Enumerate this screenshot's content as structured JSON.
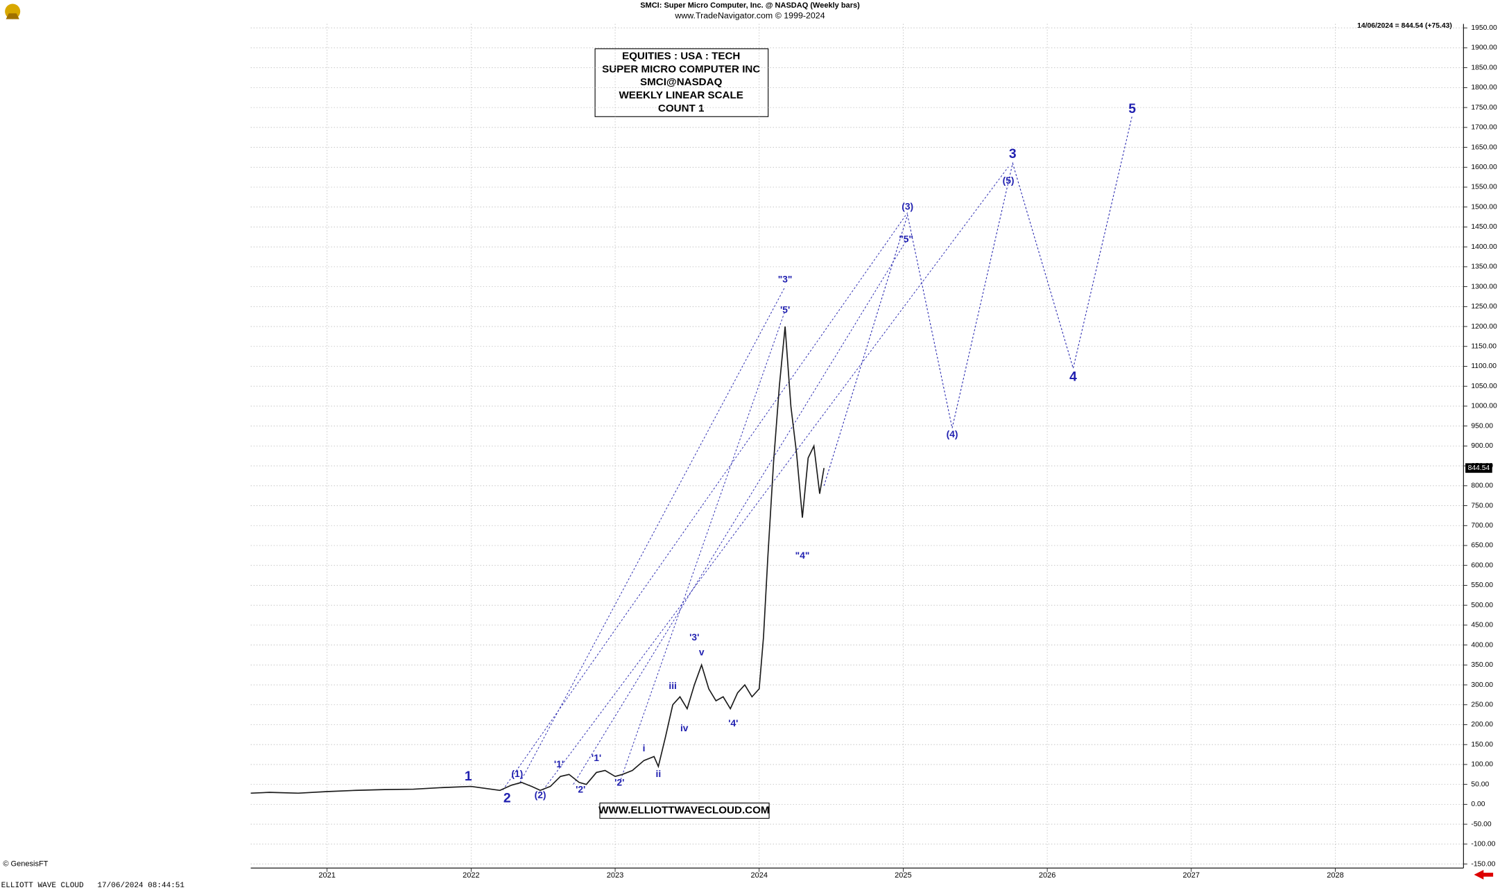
{
  "chart_data": {
    "type": "line",
    "title": "SMCI:  Super Micro Computer, Inc. @ NASDAQ  (Weekly bars)",
    "subtitle": "www.TradeNavigator.com © 1999-2024",
    "last_close_label": "14/06/2024 = 844.54 (+75.43)",
    "last_price": 844.54,
    "info_box": [
      "EQUITIES : USA : TECH",
      "SUPER MICRO COMPUTER INC",
      "SMCI@NASDAQ",
      "WEEKLY LINEAR SCALE",
      "COUNT 1"
    ],
    "website": "WWW.ELLIOTTWAVECLOUD.COM",
    "xlim": [
      2020.47,
      2028.89
    ],
    "xticks": [
      2021,
      2022,
      2023,
      2024,
      2025,
      2026,
      2027,
      2028
    ],
    "ylim": [
      -160,
      1960
    ],
    "yticks": [
      {
        "value": -150,
        "label": "-150.00"
      },
      {
        "value": -100,
        "label": "-100.00"
      },
      {
        "value": -50,
        "label": "-50.00"
      },
      {
        "value": 0,
        "label": "0.00"
      },
      {
        "value": 50,
        "label": "50.00"
      },
      {
        "value": 100,
        "label": "100.00"
      },
      {
        "value": 150,
        "label": "150.00"
      },
      {
        "value": 200,
        "label": "200.00"
      },
      {
        "value": 250,
        "label": "250.00"
      },
      {
        "value": 300,
        "label": "300.00"
      },
      {
        "value": 350,
        "label": "350.00"
      },
      {
        "value": 400,
        "label": "400.00"
      },
      {
        "value": 450,
        "label": "450.00"
      },
      {
        "value": 500,
        "label": "500.00"
      },
      {
        "value": 550,
        "label": "550.00"
      },
      {
        "value": 600,
        "label": "600.00"
      },
      {
        "value": 650,
        "label": "650.00"
      },
      {
        "value": 700,
        "label": "700.00"
      },
      {
        "value": 750,
        "label": "750.00"
      },
      {
        "value": 800,
        "label": "800.00"
      },
      {
        "value": 850,
        "label": "850.00"
      },
      {
        "value": 900,
        "label": "900.00"
      },
      {
        "value": 950,
        "label": "950.00"
      },
      {
        "value": 1000,
        "label": "1000.00"
      },
      {
        "value": 1050,
        "label": "1050.00"
      },
      {
        "value": 1100,
        "label": "1100.00"
      },
      {
        "value": 1150,
        "label": "1150.00"
      },
      {
        "value": 1200,
        "label": "1200.00"
      },
      {
        "value": 1250,
        "label": "1250.00"
      },
      {
        "value": 1300,
        "label": "1300.00"
      },
      {
        "value": 1350,
        "label": "1350.00"
      },
      {
        "value": 1400,
        "label": "1400.00"
      },
      {
        "value": 1450,
        "label": "1450.00"
      },
      {
        "value": 1500,
        "label": "1500.00"
      },
      {
        "value": 1550,
        "label": "1550.00"
      },
      {
        "value": 1600,
        "label": "1600.00"
      },
      {
        "value": 1650,
        "label": "1650.00"
      },
      {
        "value": 1700,
        "label": "1700.00"
      },
      {
        "value": 1750,
        "label": "1750.00"
      },
      {
        "value": 1800,
        "label": "1800.00"
      },
      {
        "value": 1850,
        "label": "1850.00"
      },
      {
        "value": 1900,
        "label": "1900.00"
      },
      {
        "value": 1950,
        "label": "1950.00"
      }
    ],
    "grid": true,
    "series": [
      {
        "color": "#1a1a1a",
        "x": [
          2020.47,
          2020.6,
          2020.8,
          2021.0,
          2021.2,
          2021.4,
          2021.6,
          2021.8,
          2022.0,
          2022.1,
          2022.2,
          2022.28,
          2022.35,
          2022.42,
          2022.48,
          2022.55,
          2022.62,
          2022.68,
          2022.75,
          2022.8,
          2022.87,
          2022.93,
          2023.0,
          2023.05,
          2023.12,
          2023.2,
          2023.27,
          2023.3,
          2023.35,
          2023.4,
          2023.45,
          2023.5,
          2023.55,
          2023.6,
          2023.65,
          2023.7,
          2023.75,
          2023.8,
          2023.85,
          2023.9,
          2023.95,
          2024.0,
          2024.03,
          2024.06,
          2024.1,
          2024.14,
          2024.18,
          2024.22,
          2024.26,
          2024.3,
          2024.34,
          2024.38,
          2024.42,
          2024.45
        ],
        "values": [
          28,
          30,
          28,
          32,
          35,
          37,
          38,
          42,
          45,
          40,
          35,
          48,
          55,
          45,
          35,
          45,
          70,
          75,
          55,
          50,
          80,
          85,
          70,
          75,
          85,
          110,
          120,
          95,
          170,
          250,
          270,
          240,
          300,
          350,
          290,
          260,
          270,
          240,
          280,
          300,
          270,
          290,
          420,
          620,
          860,
          1050,
          1200,
          1000,
          880,
          720,
          870,
          900,
          780,
          844.54
        ]
      }
    ],
    "projection": {
      "color": "#2a2ab0",
      "x": [
        2024.45,
        2025.03,
        2025.34,
        2025.76,
        2026.18,
        2026.59
      ],
      "values": [
        800,
        1480,
        945,
        1610,
        1095,
        1730
      ]
    },
    "guide_lines": [
      {
        "x": [
          2022.22,
          2025.03
        ],
        "values": [
          36,
          1486
        ]
      },
      {
        "x": [
          2022.34,
          2024.18
        ],
        "values": [
          55,
          1300
        ]
      },
      {
        "x": [
          2022.5,
          2025.73
        ],
        "values": [
          36,
          1601
        ]
      },
      {
        "x": [
          2022.71,
          2025.03
        ],
        "values": [
          50,
          1421
        ]
      },
      {
        "x": [
          2023.03,
          2024.18
        ],
        "values": [
          53,
          1240
        ]
      }
    ],
    "annotations": [
      {
        "text": "1",
        "x": 2021.98,
        "y": 69
      },
      {
        "text": "2",
        "x": 2022.25,
        "y": 14
      },
      {
        "text": "(1)",
        "x": 2022.32,
        "y": 75
      },
      {
        "text": "(2)",
        "x": 2022.48,
        "y": 22
      },
      {
        "text": "'1'",
        "x": 2022.61,
        "y": 99
      },
      {
        "text": "'2'",
        "x": 2022.76,
        "y": 36
      },
      {
        "text": "'1'",
        "x": 2022.87,
        "y": 115
      },
      {
        "text": "'2'",
        "x": 2023.03,
        "y": 53
      },
      {
        "text": "i",
        "x": 2023.2,
        "y": 139
      },
      {
        "text": "ii",
        "x": 2023.3,
        "y": 75
      },
      {
        "text": "iii",
        "x": 2023.4,
        "y": 296
      },
      {
        "text": "iv",
        "x": 2023.48,
        "y": 190
      },
      {
        "text": "v",
        "x": 2023.6,
        "y": 380
      },
      {
        "text": "'3'",
        "x": 2023.55,
        "y": 418
      },
      {
        "text": "'4'",
        "x": 2023.82,
        "y": 202
      },
      {
        "text": "\"3\"",
        "x": 2024.18,
        "y": 1317
      },
      {
        "text": "'5'",
        "x": 2024.18,
        "y": 1240
      },
      {
        "text": "\"4\"",
        "x": 2024.3,
        "y": 623
      },
      {
        "text": "(3)",
        "x": 2025.03,
        "y": 1500
      },
      {
        "text": "\"5\"",
        "x": 2025.02,
        "y": 1418
      },
      {
        "text": "(4)",
        "x": 2025.34,
        "y": 928
      },
      {
        "text": "(5)",
        "x": 2025.73,
        "y": 1565
      },
      {
        "text": "3",
        "x": 2025.76,
        "y": 1632
      },
      {
        "text": "4",
        "x": 2026.18,
        "y": 1072
      },
      {
        "text": "5",
        "x": 2026.59,
        "y": 1745
      }
    ]
  },
  "footer": {
    "copyright": "© GenesisFT",
    "stamp": "ELLIOTT WAVE CLOUD   17/06/2024 08:44:51"
  }
}
